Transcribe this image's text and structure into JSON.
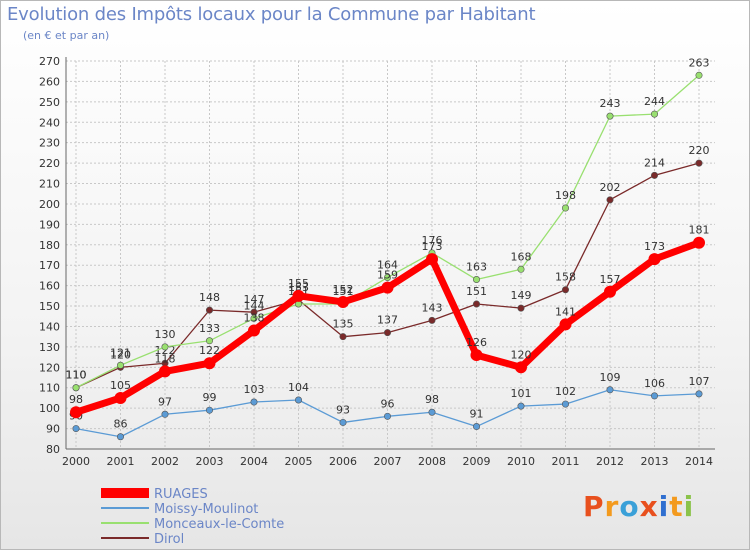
{
  "header": {
    "title": "Evolution des Impôts locaux pour la Commune par Habitant",
    "subtitle": "(en € et par an)"
  },
  "logo": {
    "text": "Proxiti"
  },
  "colors": {
    "title": "#6b86c7",
    "axis_text": "#333333",
    "grid": "#c8c8c8"
  },
  "chart_data": {
    "type": "line",
    "x": [
      "2000",
      "2001",
      "2002",
      "2003",
      "2004",
      "2005",
      "2006",
      "2007",
      "2008",
      "2009",
      "2010",
      "2011",
      "2012",
      "2013",
      "2014"
    ],
    "ylim": [
      80,
      270
    ],
    "yticks": [
      80,
      90,
      100,
      110,
      120,
      130,
      140,
      150,
      160,
      170,
      180,
      190,
      200,
      210,
      220,
      230,
      240,
      250,
      260,
      270
    ],
    "grid": true,
    "legend_position": "bottom-left",
    "series": [
      {
        "name": "RUAGES",
        "color": "#ff0000",
        "values": [
          98,
          105,
          118,
          122,
          138,
          155,
          152,
          159,
          173,
          126,
          120,
          141,
          157,
          173,
          181
        ]
      },
      {
        "name": "Moissy-Moulinot",
        "color": "#5b9bd5",
        "values": [
          90,
          86,
          97,
          99,
          103,
          104,
          93,
          96,
          98,
          91,
          101,
          102,
          109,
          106,
          107
        ]
      },
      {
        "name": "Monceaux-le-Comte",
        "color": "#99e070",
        "values": [
          110,
          121,
          130,
          133,
          144,
          151,
          151,
          164,
          176,
          163,
          168,
          198,
          243,
          244,
          263
        ]
      },
      {
        "name": "Dirol",
        "color": "#7a2a2a",
        "values": [
          110,
          120,
          122,
          148,
          147,
          153,
          135,
          137,
          143,
          151,
          149,
          158,
          202,
          214,
          220
        ]
      }
    ]
  }
}
